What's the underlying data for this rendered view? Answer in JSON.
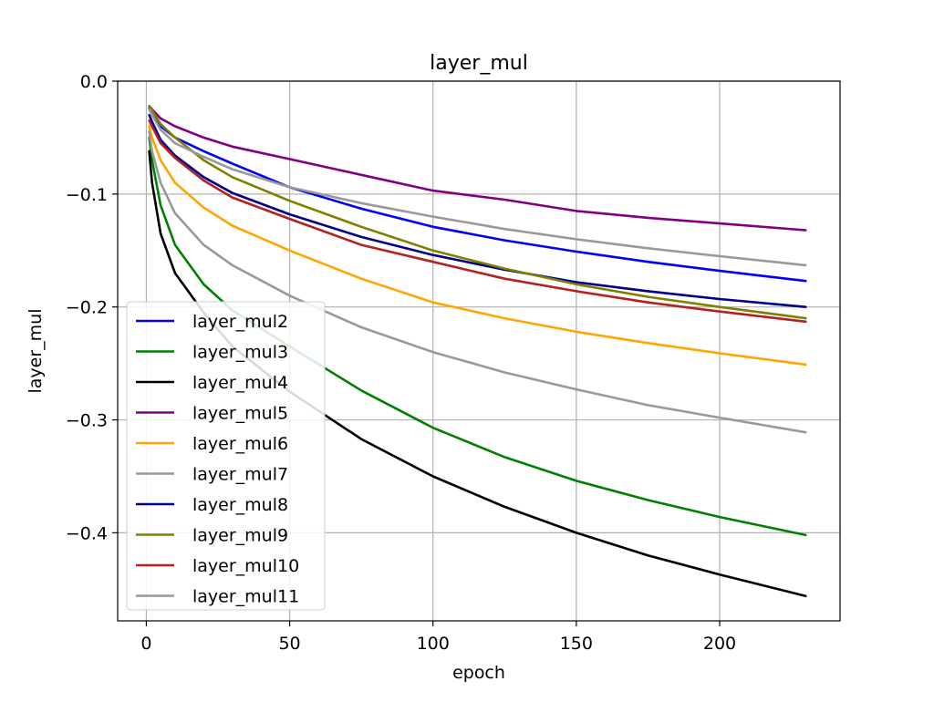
{
  "chart_data": {
    "type": "line",
    "title": "layer_mul",
    "xlabel": "epoch",
    "ylabel": "layer_mul",
    "xlim": [
      -10,
      242
    ],
    "ylim": [
      -0.478,
      0.0
    ],
    "xticks": [
      0,
      50,
      100,
      150,
      200
    ],
    "xtick_labels": [
      "0",
      "50",
      "100",
      "150",
      "200"
    ],
    "yticks": [
      0.0,
      -0.1,
      -0.2,
      -0.3,
      -0.4
    ],
    "ytick_labels": [
      "0.0",
      "−0.1",
      "−0.2",
      "−0.3",
      "−0.4"
    ],
    "grid": true,
    "legend_position": "lower-left",
    "x": [
      1,
      2,
      5,
      10,
      20,
      30,
      50,
      75,
      100,
      125,
      150,
      175,
      200,
      230
    ],
    "series": [
      {
        "name": "layer_mul2",
        "color": "#0000ff",
        "values": [
          -0.024,
          -0.03,
          -0.04,
          -0.05,
          -0.062,
          -0.073,
          -0.094,
          -0.113,
          -0.129,
          -0.141,
          -0.151,
          -0.16,
          -0.168,
          -0.177
        ]
      },
      {
        "name": "layer_mul3",
        "color": "#008000",
        "values": [
          -0.05,
          -0.07,
          -0.11,
          -0.145,
          -0.18,
          -0.203,
          -0.235,
          -0.274,
          -0.307,
          -0.333,
          -0.354,
          -0.371,
          -0.386,
          -0.402
        ]
      },
      {
        "name": "layer_mul4",
        "color": "#000000",
        "values": [
          -0.062,
          -0.09,
          -0.135,
          -0.17,
          -0.205,
          -0.235,
          -0.275,
          -0.317,
          -0.35,
          -0.377,
          -0.4,
          -0.42,
          -0.437,
          -0.456
        ]
      },
      {
        "name": "layer_mul5",
        "color": "#800080",
        "values": [
          -0.022,
          -0.025,
          -0.033,
          -0.04,
          -0.05,
          -0.058,
          -0.069,
          -0.083,
          -0.097,
          -0.105,
          -0.115,
          -0.121,
          -0.126,
          -0.132
        ]
      },
      {
        "name": "layer_mul6",
        "color": "#ffa500",
        "values": [
          -0.04,
          -0.05,
          -0.07,
          -0.09,
          -0.112,
          -0.128,
          -0.15,
          -0.175,
          -0.196,
          -0.21,
          -0.222,
          -0.232,
          -0.241,
          -0.251
        ]
      },
      {
        "name": "layer_mul7",
        "color": "#999999",
        "values": [
          -0.045,
          -0.062,
          -0.09,
          -0.117,
          -0.145,
          -0.163,
          -0.19,
          -0.218,
          -0.24,
          -0.258,
          -0.273,
          -0.287,
          -0.298,
          -0.311
        ]
      },
      {
        "name": "layer_mul8",
        "color": "#00008b",
        "values": [
          -0.03,
          -0.036,
          -0.052,
          -0.066,
          -0.085,
          -0.099,
          -0.118,
          -0.138,
          -0.154,
          -0.167,
          -0.178,
          -0.186,
          -0.193,
          -0.2
        ]
      },
      {
        "name": "layer_mul9",
        "color": "#808000",
        "values": [
          -0.022,
          -0.026,
          -0.038,
          -0.05,
          -0.07,
          -0.085,
          -0.106,
          -0.129,
          -0.15,
          -0.166,
          -0.18,
          -0.191,
          -0.2,
          -0.21
        ]
      },
      {
        "name": "layer_mul10",
        "color": "#b22222",
        "values": [
          -0.035,
          -0.04,
          -0.055,
          -0.068,
          -0.088,
          -0.103,
          -0.122,
          -0.145,
          -0.16,
          -0.175,
          -0.186,
          -0.196,
          -0.204,
          -0.213
        ]
      },
      {
        "name": "layer_mul11",
        "color": "#999999",
        "values": [
          -0.025,
          -0.03,
          -0.043,
          -0.055,
          -0.067,
          -0.078,
          -0.094,
          -0.108,
          -0.12,
          -0.131,
          -0.14,
          -0.148,
          -0.155,
          -0.163
        ]
      }
    ]
  }
}
